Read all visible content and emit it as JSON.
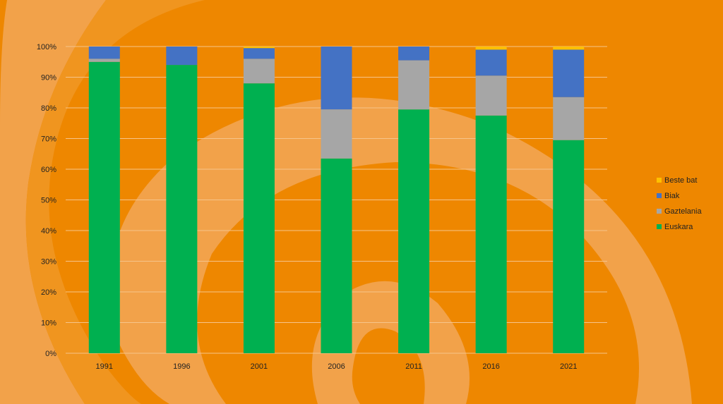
{
  "chart_data": {
    "type": "bar",
    "stacked": true,
    "normalized": true,
    "categories": [
      "1991",
      "1996",
      "2001",
      "2006",
      "2011",
      "2016",
      "2021"
    ],
    "series": [
      {
        "name": "Euskara",
        "color": "#00b050",
        "values": [
          95,
          94,
          88,
          63.5,
          79.5,
          77.5,
          69.5
        ]
      },
      {
        "name": "Gaztelania",
        "color": "#a6a6a6",
        "values": [
          1,
          0,
          8,
          16,
          16,
          13,
          14
        ]
      },
      {
        "name": "Biak",
        "color": "#4472c4",
        "values": [
          4,
          6,
          3.5,
          20.5,
          4.5,
          8.5,
          15.5
        ]
      },
      {
        "name": "Beste bat",
        "color": "#ffc000",
        "values": [
          0,
          0,
          0.5,
          0,
          0,
          1,
          1
        ]
      }
    ],
    "y_ticks": [
      "0%",
      "10%",
      "20%",
      "30%",
      "40%",
      "50%",
      "60%",
      "70%",
      "80%",
      "90%",
      "100%"
    ],
    "ylim": [
      0,
      100
    ],
    "grid": true,
    "legend_position": "right",
    "legend_order": [
      "Beste bat",
      "Biak",
      "Gaztelania",
      "Euskara"
    ],
    "background_color": "#ee8700",
    "decoration_color": "#f2a24a"
  }
}
